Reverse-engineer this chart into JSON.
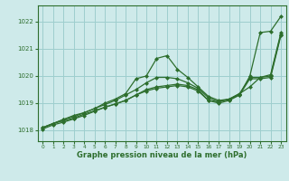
{
  "title": "Graphe pression niveau de la mer (hPa)",
  "bg_color": "#ceeaea",
  "grid_color": "#9ecece",
  "line_color": "#2d6e2d",
  "xlim": [
    -0.5,
    23.5
  ],
  "ylim": [
    1017.6,
    1022.6
  ],
  "yticks": [
    1018,
    1019,
    1020,
    1021,
    1022
  ],
  "xticks": [
    0,
    1,
    2,
    3,
    4,
    5,
    6,
    7,
    8,
    9,
    10,
    11,
    12,
    13,
    14,
    15,
    16,
    17,
    18,
    19,
    20,
    21,
    22,
    23
  ],
  "series": [
    [
      1018.1,
      1018.25,
      1018.4,
      1018.55,
      1018.65,
      1018.8,
      1019.0,
      1019.15,
      1019.35,
      1019.9,
      1020.0,
      1020.65,
      1020.75,
      1020.25,
      1019.95,
      1019.6,
      1019.25,
      1019.1,
      1019.15,
      1019.3,
      1020.0,
      1021.6,
      1021.65,
      1022.2
    ],
    [
      1018.1,
      1018.25,
      1018.4,
      1018.5,
      1018.65,
      1018.8,
      1018.95,
      1019.1,
      1019.3,
      1019.5,
      1019.75,
      1019.95,
      1019.95,
      1019.9,
      1019.75,
      1019.55,
      1019.2,
      1019.05,
      1019.15,
      1019.35,
      1019.6,
      1019.95,
      1020.05,
      1021.6
    ],
    [
      1018.1,
      1018.25,
      1018.35,
      1018.45,
      1018.6,
      1018.72,
      1018.85,
      1018.97,
      1019.1,
      1019.3,
      1019.5,
      1019.6,
      1019.65,
      1019.7,
      1019.65,
      1019.5,
      1019.1,
      1019.05,
      1019.15,
      1019.35,
      1019.95,
      1019.95,
      1020.0,
      1021.55
    ],
    [
      1018.05,
      1018.2,
      1018.3,
      1018.42,
      1018.55,
      1018.7,
      1018.85,
      1018.97,
      1019.1,
      1019.3,
      1019.45,
      1019.55,
      1019.6,
      1019.65,
      1019.6,
      1019.45,
      1019.1,
      1019.0,
      1019.1,
      1019.3,
      1019.9,
      1019.9,
      1019.95,
      1021.5
    ]
  ]
}
